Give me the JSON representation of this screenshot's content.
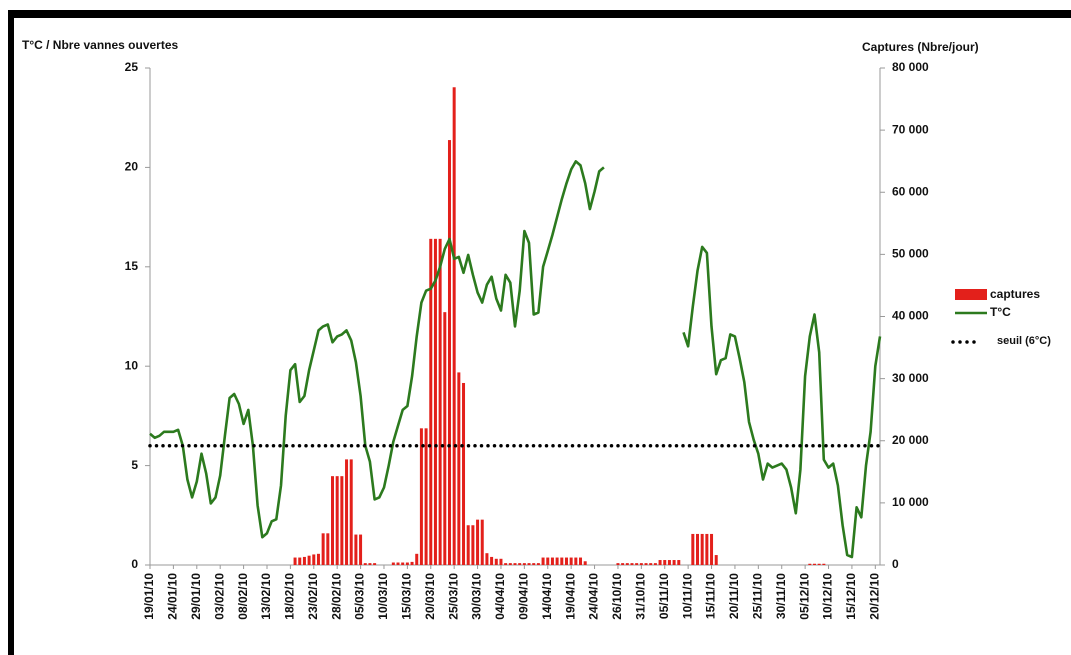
{
  "chart_data": {
    "type": "bar-line",
    "y_label": "T°C / Nbre vannes ouvertes",
    "y2_label": "Captures (Nbre/jour)",
    "categories": [
      "19/01/10",
      null,
      null,
      null,
      null,
      "24/01/10",
      null,
      null,
      null,
      null,
      "29/01/10",
      null,
      null,
      null,
      null,
      "03/02/10",
      null,
      null,
      null,
      null,
      "08/02/10",
      null,
      null,
      null,
      null,
      "13/02/10",
      null,
      null,
      null,
      null,
      "18/02/10",
      null,
      null,
      null,
      null,
      "23/02/10",
      null,
      null,
      null,
      null,
      "28/02/10",
      null,
      null,
      null,
      null,
      "05/03/10",
      null,
      null,
      null,
      null,
      "10/03/10",
      null,
      null,
      null,
      null,
      "15/03/10",
      null,
      null,
      null,
      null,
      "20/03/10",
      null,
      null,
      null,
      null,
      "25/03/10",
      null,
      null,
      null,
      null,
      "30/03/10",
      null,
      null,
      null,
      null,
      "04/04/10",
      null,
      null,
      null,
      null,
      "09/04/10",
      null,
      null,
      null,
      null,
      "14/04/10",
      null,
      null,
      null,
      null,
      "19/04/10",
      null,
      null,
      null,
      null,
      "24/04/10",
      null,
      null,
      null,
      null,
      "26/10/10",
      null,
      null,
      null,
      null,
      "31/10/10",
      null,
      null,
      null,
      null,
      "05/11/10",
      null,
      null,
      null,
      null,
      "10/11/10",
      null,
      null,
      null,
      null,
      "15/11/10",
      null,
      null,
      null,
      null,
      "20/11/10",
      null,
      null,
      null,
      null,
      "25/11/10",
      null,
      null,
      null,
      null,
      "30/11/10",
      null,
      null,
      null,
      null,
      "05/12/10",
      null,
      null,
      null,
      null,
      "10/12/10",
      null,
      null,
      null,
      null,
      "15/12/10",
      null,
      null,
      null,
      null,
      "20/12/10",
      null
    ],
    "series": [
      {
        "name": "captures",
        "kind": "bar",
        "axis": "y2",
        "color": "#e3201b",
        "values": [
          0,
          0,
          0,
          0,
          0,
          0,
          0,
          0,
          0,
          0,
          0,
          0,
          0,
          0,
          0,
          0,
          0,
          0,
          0,
          0,
          0,
          0,
          0,
          0,
          0,
          0,
          0,
          0,
          0,
          0,
          0,
          1200,
          1200,
          1300,
          1500,
          1700,
          1800,
          5100,
          5100,
          14300,
          14300,
          14300,
          17000,
          17000,
          4900,
          4900,
          300,
          300,
          300,
          0,
          0,
          0,
          400,
          400,
          400,
          400,
          500,
          1800,
          22000,
          22000,
          52500,
          52500,
          52500,
          40700,
          68400,
          76900,
          31000,
          29300,
          6400,
          6400,
          7300,
          7300,
          1900,
          1300,
          1000,
          1000,
          300,
          300,
          300,
          300,
          300,
          300,
          300,
          300,
          1200,
          1200,
          1200,
          1200,
          1200,
          1200,
          1200,
          1200,
          1200,
          600,
          0,
          0,
          0,
          0,
          0,
          0,
          300,
          300,
          300,
          300,
          300,
          300,
          300,
          300,
          300,
          800,
          800,
          800,
          800,
          800,
          0,
          0,
          5000,
          5000,
          5000,
          5000,
          5000,
          1600,
          0,
          0,
          0,
          0,
          0,
          0,
          0,
          0,
          0,
          0,
          0,
          0,
          0,
          0,
          0,
          0,
          0,
          0,
          0,
          200,
          200,
          200,
          200,
          0,
          0,
          0,
          0,
          0,
          0,
          0,
          0,
          0,
          0,
          0,
          0
        ]
      },
      {
        "name": "T°C",
        "kind": "line",
        "color": "#2c7a1e",
        "values": [
          6.6,
          6.4,
          6.5,
          6.7,
          6.7,
          6.7,
          6.8,
          6.0,
          4.3,
          3.4,
          4.2,
          5.6,
          4.6,
          3.1,
          3.4,
          4.5,
          6.5,
          8.4,
          8.6,
          8.1,
          7.1,
          7.8,
          6.0,
          3.0,
          1.4,
          1.6,
          2.2,
          2.3,
          4.0,
          7.5,
          9.8,
          10.1,
          8.2,
          8.5,
          9.8,
          10.8,
          11.8,
          12.0,
          12.1,
          11.2,
          11.5,
          11.6,
          11.8,
          11.3,
          10.2,
          8.5,
          6.0,
          5.2,
          3.3,
          3.4,
          3.9,
          5.0,
          6.2,
          7.0,
          7.8,
          8.0,
          9.5,
          11.5,
          13.2,
          13.8,
          13.9,
          14.3,
          15.0,
          15.9,
          16.4,
          15.4,
          15.5,
          14.7,
          15.6,
          14.6,
          13.7,
          13.2,
          14.1,
          14.5,
          13.4,
          12.8,
          14.6,
          14.2,
          12.0,
          13.8,
          16.8,
          16.2,
          12.6,
          12.7,
          15.0,
          15.8,
          16.6,
          17.5,
          18.4,
          19.2,
          19.9,
          20.3,
          20.1,
          19.2,
          17.9,
          18.8,
          19.8,
          20.0,
          null,
          null,
          null,
          null,
          null,
          null,
          null,
          null,
          null,
          null,
          null,
          null,
          null,
          null,
          null,
          null,
          11.7,
          11.0,
          13.0,
          14.8,
          16.0,
          15.7,
          12.0,
          9.6,
          10.3,
          10.4,
          11.6,
          11.5,
          10.4,
          9.2,
          7.2,
          6.3,
          5.6,
          4.3,
          5.1,
          4.9,
          5.0,
          5.1,
          4.8,
          3.9,
          2.6,
          4.8,
          9.5,
          11.5,
          12.6,
          10.7,
          5.3,
          4.9,
          5.1,
          4.0,
          2.0,
          0.5,
          0.4,
          2.9,
          2.4,
          5.0,
          6.7,
          10.0,
          11.5
        ]
      }
    ],
    "threshold": 6,
    "threshold_label": "seuil (6°C)",
    "ylim": [
      0,
      25
    ],
    "yticks": [
      0,
      5,
      10,
      15,
      20,
      25
    ],
    "y2lim": [
      0,
      80000
    ],
    "y2ticks": [
      0,
      {
        "value": 10000,
        "label": "10 000"
      },
      {
        "value": 20000,
        "label": "20 000"
      },
      {
        "value": 30000,
        "label": "30 000"
      },
      {
        "value": 40000,
        "label": "40 000"
      },
      {
        "value": 50000,
        "label": "50 000"
      },
      {
        "value": 60000,
        "label": "60 000"
      },
      {
        "value": 70000,
        "label": "70 000"
      },
      {
        "value": 80000,
        "label": "80 000"
      }
    ],
    "legend": "right"
  }
}
